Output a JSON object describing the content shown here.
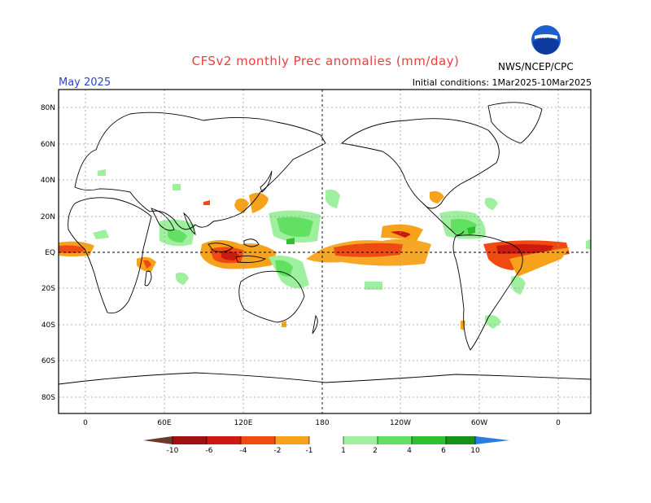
{
  "header": {
    "title": "CFSv2 monthly Prec anomalies (mm/day)",
    "month": "May 2025",
    "initial_conditions": "Initial conditions: 1Mar2025-10Mar2025",
    "agency": "NWS/NCEP/CPC",
    "logo_text": "NOAA"
  },
  "map": {
    "lat_labels": [
      "80N",
      "60N",
      "40N",
      "20N",
      "EQ",
      "20S",
      "40S",
      "60S",
      "80S"
    ],
    "lon_labels": [
      "0",
      "60E",
      "120E",
      "180",
      "120W",
      "60W",
      "0"
    ]
  },
  "colorbar": {
    "labels": [
      "-10",
      "-6",
      "-4",
      "-2",
      "-1",
      "1",
      "2",
      "4",
      "6",
      "10"
    ],
    "colors": {
      "lt_-10": "#6b3a28",
      "-10_-6": "#a01010",
      "-6_-4": "#cc1a10",
      "-4_-2": "#f04a12",
      "-2_-1": "#f7a21b",
      "-1_1": "#ffffff",
      "1_2": "#9ef09e",
      "2_4": "#62e062",
      "4_6": "#2fbf2f",
      "6_10": "#169216",
      "gt_10": "#2a7de0"
    }
  }
}
